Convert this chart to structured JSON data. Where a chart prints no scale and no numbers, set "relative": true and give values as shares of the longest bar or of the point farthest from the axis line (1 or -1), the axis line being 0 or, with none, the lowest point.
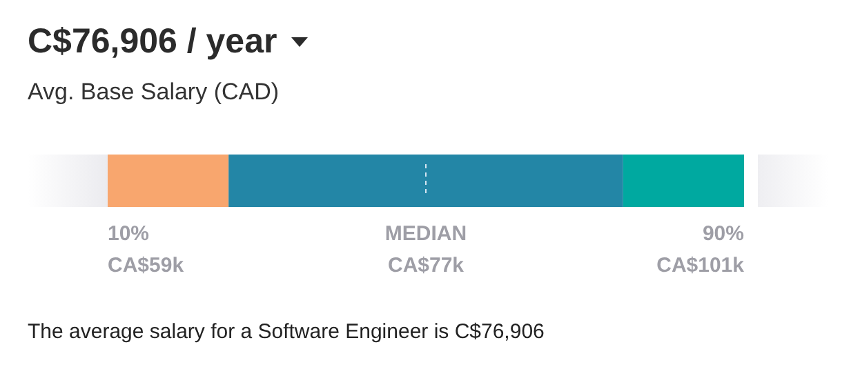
{
  "chart_data": {
    "type": "bar",
    "orientation": "horizontal",
    "stacked": true,
    "relative": true,
    "title": "C$76,906 / year",
    "subtitle": "Avg. Base Salary (CAD)",
    "categories": [
      null
    ],
    "series": [
      {
        "color": "#f8a66e",
        "values": [
          0.19
        ]
      },
      {
        "color": "#2386a6",
        "values": [
          0.62
        ]
      },
      {
        "color": "#00a9a0",
        "values": [
          0.19
        ]
      }
    ],
    "ref_lines": [
      {
        "axis": "x",
        "value": 0.5,
        "label": "MEDIAN",
        "color": "#d6e6f2",
        "line_style": "dashed"
      }
    ],
    "annotations": [
      "10%",
      "CA$59k",
      "CA$77k",
      "90%",
      "CA$101k",
      "The average salary for a Software Engineer is C$76,906"
    ]
  }
}
